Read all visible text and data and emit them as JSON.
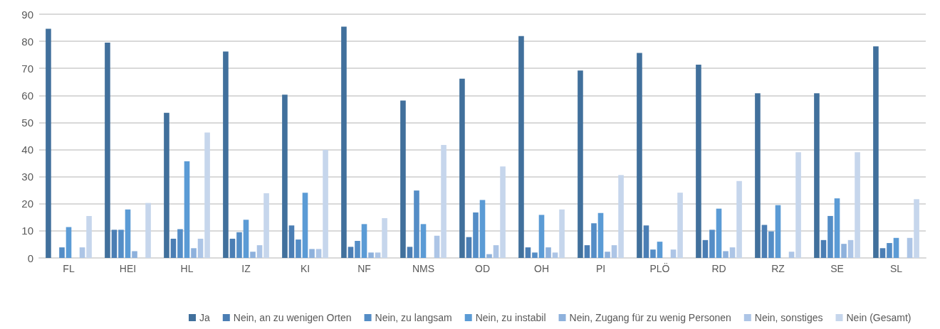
{
  "chart_data": {
    "type": "bar",
    "categories": [
      "FL",
      "HEI",
      "HL",
      "IZ",
      "KI",
      "NF",
      "NMS",
      "OD",
      "OH",
      "PI",
      "PLÖ",
      "RD",
      "RZ",
      "SE",
      "SL"
    ],
    "series": [
      {
        "name": "Ja",
        "color": "#41709c",
        "values": [
          84.6,
          79.5,
          53.6,
          76.2,
          60.3,
          85.4,
          58.1,
          66.2,
          81.9,
          69.2,
          75.7,
          71.4,
          60.8,
          60.8,
          78.1
        ]
      },
      {
        "name": "Nein, an zu wenigen Orten",
        "color": "#4b7eb4",
        "values": [
          0,
          10.4,
          7.1,
          7.1,
          12.0,
          4.1,
          4.1,
          7.7,
          3.9,
          4.7,
          12.0,
          6.6,
          12.2,
          6.6,
          3.6
        ]
      },
      {
        "name": "Nein, zu langsam",
        "color": "#548dc6",
        "values": [
          3.9,
          10.4,
          10.6,
          9.5,
          6.8,
          6.3,
          24.9,
          16.8,
          2.0,
          12.8,
          3.1,
          10.4,
          9.8,
          15.5,
          5.5
        ]
      },
      {
        "name": "Nein, zu instabil",
        "color": "#5b9bd5",
        "values": [
          11.4,
          17.9,
          35.7,
          14.1,
          24.1,
          12.5,
          12.5,
          21.4,
          15.9,
          16.6,
          6.0,
          18.2,
          19.5,
          22.0,
          7.4
        ]
      },
      {
        "name": "Nein, Zugang für zu wenig Personen",
        "color": "#8eb1dc",
        "values": [
          0,
          2.5,
          3.6,
          2.3,
          3.3,
          2.0,
          0,
          1.4,
          3.9,
          2.3,
          0,
          2.5,
          0,
          5.2,
          0
        ]
      },
      {
        "name": "Nein, sonstiges",
        "color": "#adc5e6",
        "values": [
          3.9,
          0,
          7.1,
          4.7,
          3.3,
          2.0,
          8.2,
          4.7,
          2.0,
          4.7,
          3.1,
          3.9,
          2.3,
          6.6,
          7.4
        ]
      },
      {
        "name": "Nein (Gesamt)",
        "color": "#c6d6ec",
        "values": [
          15.5,
          20.3,
          46.3,
          23.9,
          39.9,
          14.7,
          41.7,
          33.8,
          17.9,
          30.6,
          24.1,
          28.4,
          39.0,
          39.0,
          21.7
        ]
      }
    ],
    "ylim": [
      0,
      90
    ],
    "yticks": [
      0,
      10,
      20,
      30,
      40,
      50,
      60,
      70,
      80,
      90
    ],
    "grid": "y",
    "legend": "bottom"
  }
}
